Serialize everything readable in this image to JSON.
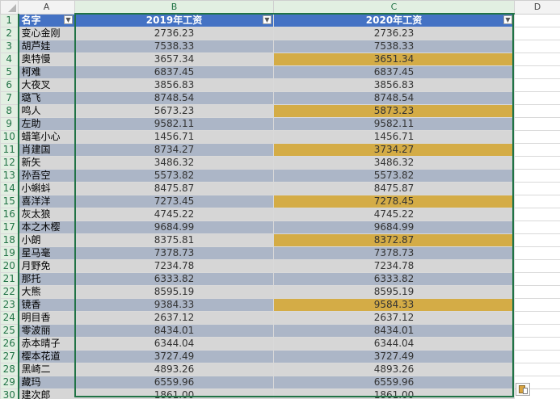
{
  "columns": [
    "A",
    "B",
    "C",
    "D"
  ],
  "headers": {
    "name": "名字",
    "y2019": "2019年工资",
    "y2020": "2020年工资"
  },
  "filter_icon": "chevron-down-icon",
  "rows": [
    {
      "num": "1"
    },
    {
      "num": "2",
      "name": "变心金刚",
      "y2019": "2736.23",
      "y2020": "2736.23"
    },
    {
      "num": "3",
      "name": "胡芦娃",
      "y2019": "7538.33",
      "y2020": "7538.33"
    },
    {
      "num": "4",
      "name": "奥特慢",
      "y2019": "3657.34",
      "y2020": "3651.34",
      "highlight": true
    },
    {
      "num": "5",
      "name": "柯难",
      "y2019": "6837.45",
      "y2020": "6837.45"
    },
    {
      "num": "6",
      "name": "大夜叉",
      "y2019": "3856.83",
      "y2020": "3856.83"
    },
    {
      "num": "7",
      "name": "璐飞",
      "y2019": "8748.54",
      "y2020": "8748.54"
    },
    {
      "num": "8",
      "name": "鸣人",
      "y2019": "5673.23",
      "y2020": "5873.23",
      "highlight": true
    },
    {
      "num": "9",
      "name": "左助",
      "y2019": "9582.11",
      "y2020": "9582.11"
    },
    {
      "num": "10",
      "name": "蜡笔小心",
      "y2019": "1456.71",
      "y2020": "1456.71"
    },
    {
      "num": "11",
      "name": "肖建国",
      "y2019": "8734.27",
      "y2020": "3734.27",
      "highlight": true
    },
    {
      "num": "12",
      "name": "新矢",
      "y2019": "3486.32",
      "y2020": "3486.32"
    },
    {
      "num": "13",
      "name": "孙吾空",
      "y2019": "5573.82",
      "y2020": "5573.82"
    },
    {
      "num": "14",
      "name": "小蝌蚪",
      "y2019": "8475.87",
      "y2020": "8475.87"
    },
    {
      "num": "15",
      "name": "喜洋洋",
      "y2019": "7273.45",
      "y2020": "7278.45",
      "highlight": true
    },
    {
      "num": "16",
      "name": "灰太狼",
      "y2019": "4745.22",
      "y2020": "4745.22"
    },
    {
      "num": "17",
      "name": "本之木樱",
      "y2019": "9684.99",
      "y2020": "9684.99"
    },
    {
      "num": "18",
      "name": "小朗",
      "y2019": "8375.81",
      "y2020": "8372.87",
      "highlight": true
    },
    {
      "num": "19",
      "name": "星马毫",
      "y2019": "7378.73",
      "y2020": "7378.73"
    },
    {
      "num": "20",
      "name": "月野免",
      "y2019": "7234.78",
      "y2020": "7234.78"
    },
    {
      "num": "21",
      "name": "那托",
      "y2019": "6333.82",
      "y2020": "6333.82"
    },
    {
      "num": "22",
      "name": "大熊",
      "y2019": "8595.19",
      "y2020": "8595.19"
    },
    {
      "num": "23",
      "name": "镜香",
      "y2019": "9384.33",
      "y2020": "9584.33",
      "highlight": true
    },
    {
      "num": "24",
      "name": "明目香",
      "y2019": "2637.12",
      "y2020": "2637.12"
    },
    {
      "num": "25",
      "name": "零波丽",
      "y2019": "8434.01",
      "y2020": "8434.01"
    },
    {
      "num": "26",
      "name": "赤本晴子",
      "y2019": "6344.04",
      "y2020": "6344.04"
    },
    {
      "num": "27",
      "name": "樱本花道",
      "y2019": "3727.49",
      "y2020": "3727.49"
    },
    {
      "num": "28",
      "name": "黑崎二",
      "y2019": "4893.26",
      "y2020": "4893.26"
    },
    {
      "num": "29",
      "name": "藏玛",
      "y2019": "6559.96",
      "y2020": "6559.96"
    },
    {
      "num": "30",
      "name": "建次郎",
      "y2019": "1861.00",
      "y2020": "1861.00"
    }
  ],
  "colors": {
    "header_blue": "#4472c4",
    "row_light": "#d6d6d6",
    "row_dark": "#acb6c7",
    "highlight_gold": "#d4ac46",
    "selection_green": "#217346"
  },
  "paste_options_icon": "paste-options-icon"
}
